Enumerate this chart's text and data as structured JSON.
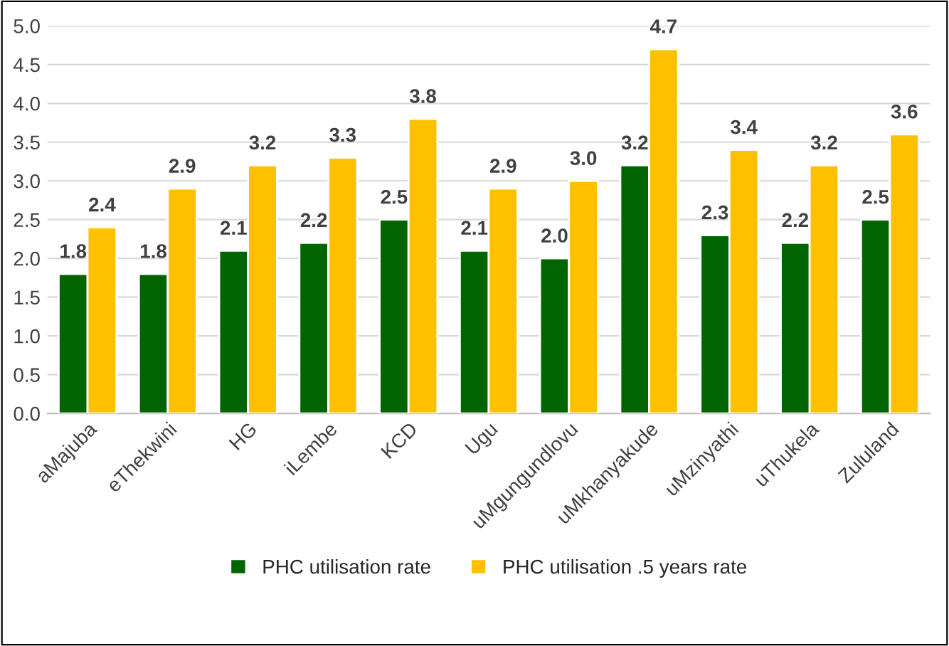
{
  "chart_data": {
    "type": "bar",
    "categories": [
      "aMajuba",
      "eThekwini",
      "HG",
      "iLembe",
      "KCD",
      "Ugu",
      "uMgungundlovu",
      "uMkhanyakude",
      "uMzinyathi",
      "uThukela",
      "Zululand"
    ],
    "series": [
      {
        "name": "PHC utilisation rate",
        "color": "#006400",
        "values": [
          1.8,
          1.8,
          2.1,
          2.2,
          2.5,
          2.1,
          2.0,
          3.2,
          2.3,
          2.2,
          2.5
        ],
        "value_labels": [
          "1.8",
          "1.8",
          "2.1",
          "2.2",
          "2.5",
          "2.1",
          "2.0",
          "3.2",
          "2.3",
          "2.2",
          "2.5"
        ]
      },
      {
        "name": "PHC utilisation .5 years rate",
        "color": "#ffc000",
        "values": [
          2.4,
          2.9,
          3.2,
          3.3,
          3.8,
          2.9,
          3.0,
          4.7,
          3.4,
          3.2,
          3.6
        ],
        "value_labels": [
          "2.4",
          "2.9",
          "3.2",
          "3.3",
          "3.8",
          "2.9",
          "3.0",
          "4.7",
          "3.4",
          "3.2",
          "3.6"
        ]
      }
    ],
    "ylim": [
      0,
      5.0
    ],
    "yticks": [
      {
        "value": 0,
        "label": "0.0"
      },
      {
        "value": 0.5,
        "label": "0.5"
      },
      {
        "value": 1,
        "label": "1.0"
      },
      {
        "value": 1.5,
        "label": "1.5"
      },
      {
        "value": 2,
        "label": "2.0"
      },
      {
        "value": 2.5,
        "label": "2.5"
      },
      {
        "value": 3,
        "label": "3.0"
      },
      {
        "value": 3.5,
        "label": "3.5"
      },
      {
        "value": 4,
        "label": "4.0"
      },
      {
        "value": 4.5,
        "label": "4.5"
      },
      {
        "value": 5,
        "label": "5.0"
      }
    ],
    "grid": "y",
    "legend": "bottom"
  }
}
